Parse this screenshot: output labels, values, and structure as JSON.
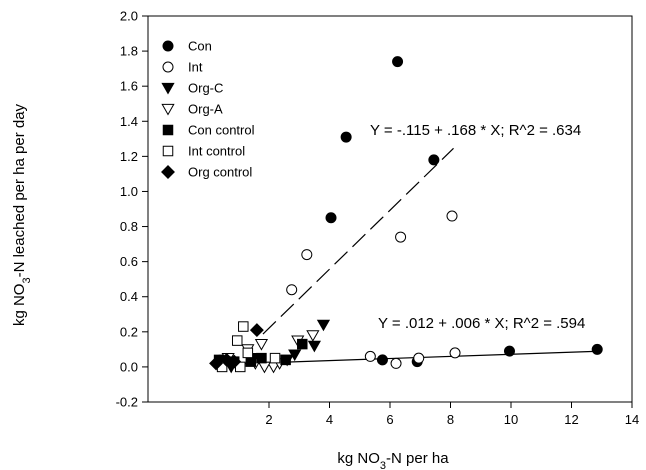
{
  "chart_data": {
    "type": "scatter",
    "xlabel": {
      "pre": "kg NO",
      "sub": "3",
      "post": "-N per ha"
    },
    "ylabel": {
      "pre": "kg NO",
      "sub": "3",
      "post": "-N leached per ha per day"
    },
    "xlim": [
      -2,
      14
    ],
    "ylim": [
      -0.2,
      2.0
    ],
    "xticks": [
      "2",
      "4",
      "6",
      "8",
      "10",
      "12",
      "14"
    ],
    "yticks": [
      "-0.2",
      "0.0",
      "0.2",
      "0.4",
      "0.6",
      "0.8",
      "1.0",
      "1.2",
      "1.4",
      "1.6",
      "1.8",
      "2.0"
    ],
    "legend_position": "top-left",
    "series": [
      {
        "name": "Con",
        "marker": "circle",
        "fill": "#000000",
        "x": [
          4.05,
          4.55,
          6.25,
          7.45,
          5.75,
          6.9,
          9.95,
          12.85
        ],
        "y": [
          0.85,
          1.31,
          1.74,
          1.18,
          0.04,
          0.03,
          0.09,
          0.1
        ]
      },
      {
        "name": "Int",
        "marker": "circle",
        "fill": "#ffffff",
        "x": [
          2.75,
          3.25,
          6.35,
          8.05,
          5.35,
          6.2,
          6.95,
          8.15
        ],
        "y": [
          0.44,
          0.64,
          0.74,
          0.86,
          0.06,
          0.02,
          0.05,
          0.08
        ]
      },
      {
        "name": "Org-C",
        "marker": "triangle-down",
        "fill": "#000000",
        "x": [
          3.8,
          3.5,
          2.85,
          2.6,
          1.5,
          0.55,
          0.75
        ],
        "y": [
          0.24,
          0.12,
          0.07,
          0.04,
          0.05,
          0.04,
          0.0
        ]
      },
      {
        "name": "Org-A",
        "marker": "triangle-down",
        "fill": "#ffffff",
        "x": [
          3.45,
          2.95,
          1.75,
          1.3,
          2.15,
          2.35,
          1.85,
          0.65,
          1.55
        ],
        "y": [
          0.18,
          0.15,
          0.13,
          0.1,
          0.0,
          0.02,
          0.0,
          0.05,
          0.02
        ]
      },
      {
        "name": "Con control",
        "marker": "square",
        "fill": "#000000",
        "x": [
          3.1,
          0.35,
          1.4,
          1.75,
          2.55,
          0.85
        ],
        "y": [
          0.13,
          0.04,
          0.03,
          0.05,
          0.04,
          0.03
        ]
      },
      {
        "name": "Int control",
        "marker": "square",
        "fill": "#ffffff",
        "x": [
          1.15,
          0.95,
          2.2,
          1.05,
          0.45,
          1.3
        ],
        "y": [
          0.23,
          0.15,
          0.05,
          0.0,
          0.0,
          0.08
        ]
      },
      {
        "name": "Org control",
        "marker": "diamond",
        "fill": "#000000",
        "x": [
          1.6,
          0.6,
          0.85,
          0.25
        ],
        "y": [
          0.21,
          0.04,
          0.03,
          0.02
        ]
      }
    ],
    "fits": [
      {
        "intercept": -0.115,
        "slope": 0.168,
        "x_range": [
          1.8,
          8.1
        ],
        "style": "dashed",
        "equation": "Y = -.115 + .168 * X; R^2 = .634"
      },
      {
        "intercept": 0.012,
        "slope": 0.006,
        "x_range": [
          0.3,
          12.9
        ],
        "style": "solid",
        "equation": "Y = .012 + .006 * X; R^2 = .594"
      }
    ]
  }
}
